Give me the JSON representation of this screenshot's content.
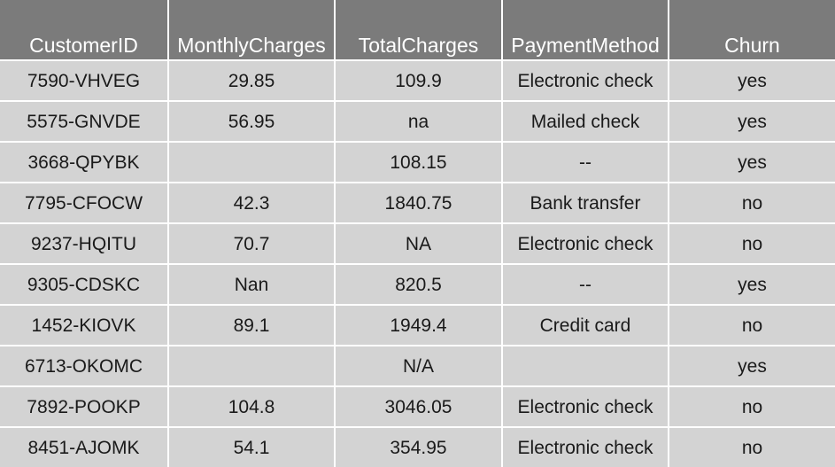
{
  "table": {
    "headers": [
      "CustomerID",
      "MonthlyCharges",
      "TotalCharges",
      "PaymentMethod",
      "Churn"
    ],
    "rows": [
      [
        "7590-VHVEG",
        "29.85",
        "109.9",
        "Electronic check",
        "yes"
      ],
      [
        "5575-GNVDE",
        "56.95",
        "na",
        "Mailed check",
        "yes"
      ],
      [
        "3668-QPYBK",
        "",
        "108.15",
        "--",
        "yes"
      ],
      [
        "7795-CFOCW",
        "42.3",
        "1840.75",
        "Bank transfer",
        "no"
      ],
      [
        "9237-HQITU",
        "70.7",
        "NA",
        "Electronic check",
        "no"
      ],
      [
        "9305-CDSKC",
        "Nan",
        "820.5",
        "--",
        "yes"
      ],
      [
        "1452-KIOVK",
        "89.1",
        "1949.4",
        "Credit card",
        "no"
      ],
      [
        "6713-OKOMC",
        "",
        "N/A",
        "",
        "yes"
      ],
      [
        "7892-POOKP",
        "104.8",
        "3046.05",
        "Electronic check",
        "no"
      ],
      [
        "8451-AJOMK",
        "54.1",
        "354.95",
        "Electronic check",
        "no"
      ]
    ]
  },
  "colors": {
    "header_bg": "#7b7b7b",
    "header_text": "#ffffff",
    "cell_bg": "#d3d3d3",
    "cell_text": "#1a1a1a",
    "grid_line": "#ffffff"
  }
}
